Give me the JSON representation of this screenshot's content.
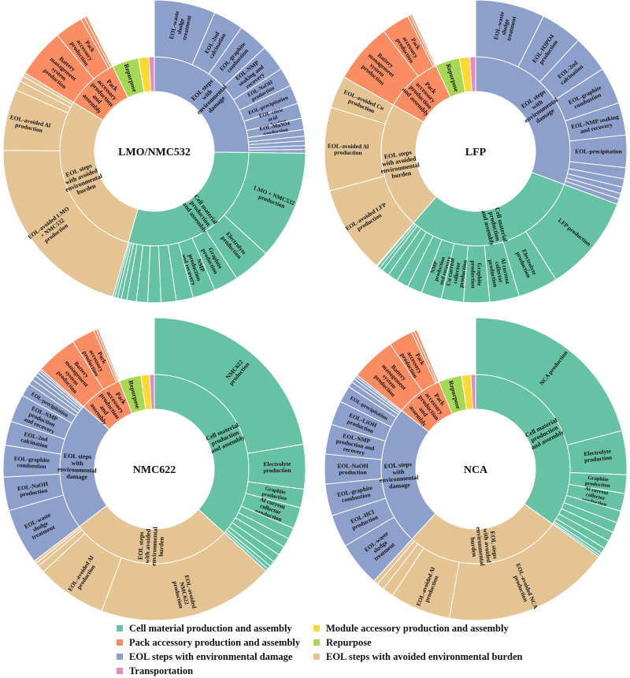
{
  "colors": {
    "cell": "#66C2A5",
    "pack": "#FC8D62",
    "eol_dmg": "#8DA0CB",
    "module": "#FFD92F",
    "repurpose": "#A6D854",
    "eol_avoid": "#E5C494",
    "transport": "#E78AC3"
  },
  "legend": [
    {
      "key": "cell",
      "label": "Cell material production and assembly"
    },
    {
      "key": "module",
      "label": "Module accessory production and assembly"
    },
    {
      "key": "pack",
      "label": "Pack accessory production and assembly"
    },
    {
      "key": "repurpose",
      "label": "Repurpose"
    },
    {
      "key": "eol_dmg",
      "label": "EOL steps with environmental damage"
    },
    {
      "key": "eol_avoid",
      "label": "EOL steps with avoided environmental burden"
    },
    {
      "key": "transport",
      "label": "Transportation"
    }
  ],
  "chart_data": [
    {
      "type": "sunburst",
      "title": "LMO/NMC532",
      "inner": [
        {
          "key": "eol_dmg",
          "value": 25,
          "label": "EOL steps with environmental damage",
          "outer": [
            {
              "value": 6.5,
              "label": "EOL-waste sludge treatment"
            },
            {
              "value": 3.2,
              "label": "EOL-2nd calcination"
            },
            {
              "value": 3.2,
              "label": "EOL-graphite combustion"
            },
            {
              "value": 2.8,
              "label": "EOL-NMP soaking and recovery"
            },
            {
              "value": 2.0,
              "label": "EOL-NaOH production"
            },
            {
              "value": 2.0,
              "label": "EOL-precipitation"
            },
            {
              "value": 1.6,
              "label": "EOL-citric acid production"
            },
            {
              "value": 1.2,
              "label": "EOL-Mn3O4 production"
            },
            {
              "value": 0.7
            },
            {
              "value": 0.5
            },
            {
              "value": 0.5
            },
            {
              "value": 0.4
            },
            {
              "value": 0.4
            }
          ]
        },
        {
          "key": "cell",
          "value": 29,
          "label": "Cell material production and assembly",
          "outer": [
            {
              "value": 11.5,
              "label": "LMO + NMC532 production"
            },
            {
              "value": 4.0,
              "label": "Electrolyte production"
            },
            {
              "value": 2.6,
              "label": "Graphite production"
            },
            {
              "value": 2.4,
              "label": "NMP production and recovery"
            },
            {
              "value": 1.8
            },
            {
              "value": 1.6
            },
            {
              "value": 1.4
            },
            {
              "value": 1.2
            },
            {
              "value": 1.0
            },
            {
              "value": 0.6
            },
            {
              "value": 0.4
            },
            {
              "value": 0.3
            },
            {
              "value": 0.2
            }
          ]
        },
        {
          "key": "eol_avoid",
          "value": 29,
          "label": "EOL steps with avoided environmental burden",
          "outer": [
            {
              "value": 20.5,
              "label": "EOL-avoided LMO + NMC532 production"
            },
            {
              "value": 6.5,
              "label": "EOL-avoided Al production"
            },
            {
              "value": 1.0
            },
            {
              "value": 0.6
            },
            {
              "value": 0.4
            }
          ]
        },
        {
          "key": "pack",
          "value": 9,
          "label": "Pack accessory production and assembly",
          "outer": [
            {
              "value": 5.2,
              "label": "Battery management system production"
            },
            {
              "value": 3.0,
              "label": "Pack accessory production"
            },
            {
              "value": 0.4
            },
            {
              "value": 0.3
            },
            {
              "value": 0.1
            }
          ]
        },
        {
          "key": "repurpose",
          "value": 4.5,
          "label": "Repurpose"
        },
        {
          "key": "module",
          "value": 1.8
        },
        {
          "key": "transport",
          "value": 0.9
        }
      ]
    },
    {
      "type": "sunburst",
      "title": "LFP",
      "inner": [
        {
          "key": "eol_dmg",
          "value": 31,
          "label": "EOL steps with environmental damage",
          "outer": [
            {
              "value": 7.5,
              "label": "EOL-waste sludge treatment"
            },
            {
              "value": 4.5,
              "label": "EOL-H3PO4 production"
            },
            {
              "value": 4.0,
              "label": "EOL-2nd calcination"
            },
            {
              "value": 4.0,
              "label": "EOL-graphite combustion"
            },
            {
              "value": 3.5,
              "label": "EOL-NMP soaking and recovery"
            },
            {
              "value": 3.5,
              "label": "EOL-precipitation"
            },
            {
              "value": 1.2
            },
            {
              "value": 0.9
            },
            {
              "value": 0.7
            },
            {
              "value": 0.6
            },
            {
              "value": 0.6
            }
          ]
        },
        {
          "key": "cell",
          "value": 31,
          "label": "Cell material production and assembly",
          "outer": [
            {
              "value": 10.5,
              "label": "LFP production"
            },
            {
              "value": 4.3,
              "label": "Electrolyte production"
            },
            {
              "value": 3.2,
              "label": "Al current collector production"
            },
            {
              "value": 2.8,
              "label": "Graphite production"
            },
            {
              "value": 2.4,
              "label": "Cu current collector production"
            },
            {
              "value": 2.2,
              "label": "NMP production and recovery"
            },
            {
              "value": 1.6
            },
            {
              "value": 1.3
            },
            {
              "value": 1.1
            },
            {
              "value": 0.8
            },
            {
              "value": 0.4
            },
            {
              "value": 0.3
            },
            {
              "value": 0.1
            }
          ]
        },
        {
          "key": "eol_avoid",
          "value": 22,
          "label": "EOL steps with avoided environmental burden",
          "outer": [
            {
              "value": 9.5,
              "label": "EOL-avoided LFP production"
            },
            {
              "value": 9.0,
              "label": "EOL-avoided Al production"
            },
            {
              "value": 3.5,
              "label": "EOL-avoided Cu production"
            }
          ]
        },
        {
          "key": "pack",
          "value": 10,
          "label": "Pack accessory production and assembly",
          "outer": [
            {
              "value": 6.5,
              "label": "Battery management system production"
            },
            {
              "value": 3.0,
              "label": "Pack accessory production"
            },
            {
              "value": 0.3
            },
            {
              "value": 0.2
            }
          ]
        },
        {
          "key": "repurpose",
          "value": 4.2,
          "label": "Repurpose"
        },
        {
          "key": "module",
          "value": 1.8
        },
        {
          "key": "transport",
          "value": 1.0
        }
      ]
    },
    {
      "type": "sunburst",
      "title": "NMC622",
      "inner": [
        {
          "key": "cell",
          "value": 37,
          "label": "Cell material production and assembly",
          "outer": [
            {
              "value": 22.5,
              "label": "NMC622 production"
            },
            {
              "value": 4.8,
              "label": "Electrolyte production"
            },
            {
              "value": 2.0,
              "label": "Graphite production"
            },
            {
              "value": 2.3,
              "label": "Al current collector production"
            },
            {
              "value": 1.2
            },
            {
              "value": 1.0
            },
            {
              "value": 1.0
            },
            {
              "value": 0.9
            },
            {
              "value": 0.6
            },
            {
              "value": 0.4
            },
            {
              "value": 0.3
            }
          ]
        },
        {
          "key": "eol_avoid",
          "value": 28,
          "label": "EOL steps with avoided environmental burden",
          "outer": [
            {
              "value": 19.0,
              "label": "EOL-avoided NMC622 production"
            },
            {
              "value": 7.5,
              "label": "EOL-avoided Al production"
            },
            {
              "value": 0.8
            },
            {
              "value": 0.4
            },
            {
              "value": 0.3
            }
          ]
        },
        {
          "key": "eol_dmg",
          "value": 22,
          "label": "EOL steps with environmental damage",
          "outer": [
            {
              "value": 6.0,
              "label": "EOL-waste sludge treatment"
            },
            {
              "value": 3.6,
              "label": "EOL-NaOH production"
            },
            {
              "value": 3.4,
              "label": "EOL-graphite combustion"
            },
            {
              "value": 2.6,
              "label": "EOL-2nd calcination"
            },
            {
              "value": 3.0,
              "label": "EOL-NMP production and recovery"
            },
            {
              "value": 1.4,
              "label": "EOL-precipitation"
            },
            {
              "value": 0.6
            },
            {
              "value": 0.5
            },
            {
              "value": 0.4
            },
            {
              "value": 0.3
            },
            {
              "value": 0.2
            }
          ]
        },
        {
          "key": "pack",
          "value": 7.5,
          "label": "Pack accessory production and assembly",
          "outer": [
            {
              "value": 4.5,
              "label": "Battery management system production"
            },
            {
              "value": 2.5,
              "label": "Pack accessory production"
            },
            {
              "value": 0.3
            },
            {
              "value": 0.2
            }
          ]
        },
        {
          "key": "repurpose",
          "value": 3.8,
          "label": "Repurpose"
        },
        {
          "key": "module",
          "value": 1.5
        },
        {
          "key": "transport",
          "value": 0.8
        }
      ]
    },
    {
      "type": "sunburst",
      "title": "NCA",
      "inner": [
        {
          "key": "cell",
          "value": 35,
          "label": "Cell material production and assembly",
          "outer": [
            {
              "value": 21.0,
              "label": "NCA production"
            },
            {
              "value": 4.7,
              "label": "Electrolyte production"
            },
            {
              "value": 2.0,
              "label": "Graphite production"
            },
            {
              "value": 1.9,
              "label": "Al current collector production"
            },
            {
              "value": 1.3
            },
            {
              "value": 1.1
            },
            {
              "value": 1.0
            },
            {
              "value": 0.9
            },
            {
              "value": 0.6
            },
            {
              "value": 0.3
            },
            {
              "value": 0.2
            }
          ]
        },
        {
          "key": "eol_avoid",
          "value": 27,
          "label": "EOL steps with avoided environmental burden",
          "outer": [
            {
              "value": 18.0,
              "label": "EOL-avoided NCA production"
            },
            {
              "value": 6.5,
              "label": "EOL-avoided Al production"
            },
            {
              "value": 1.2
            },
            {
              "value": 0.8
            },
            {
              "value": 0.5
            }
          ]
        },
        {
          "key": "eol_dmg",
          "value": 24,
          "label": "EOL steps with environmental damage",
          "outer": [
            {
              "value": 4.8,
              "label": "EOL-waste sludge treatment"
            },
            {
              "value": 3.5,
              "label": "EOL-HCl production"
            },
            {
              "value": 3.4,
              "label": "EOL-graphite combustion"
            },
            {
              "value": 3.2,
              "label": "EOL-NaOH production"
            },
            {
              "value": 3.2,
              "label": "EOL-NMP production and recovery"
            },
            {
              "value": 2.6,
              "label": "EOL-LiOH production"
            },
            {
              "value": 1.8,
              "label": "EOL-precipitation"
            },
            {
              "value": 0.6
            },
            {
              "value": 0.4
            },
            {
              "value": 0.3
            },
            {
              "value": 0.2
            }
          ]
        },
        {
          "key": "pack",
          "value": 8,
          "label": "Pack accessory production and assembly",
          "outer": [
            {
              "value": 4.8,
              "label": "Battery management system production"
            },
            {
              "value": 2.6,
              "label": "Pack accessory production"
            },
            {
              "value": 0.3
            },
            {
              "value": 0.3
            }
          ]
        },
        {
          "key": "repurpose",
          "value": 4.0,
          "label": "Repurpose"
        },
        {
          "key": "module",
          "value": 1.6
        },
        {
          "key": "transport",
          "value": 0.8
        }
      ]
    }
  ]
}
